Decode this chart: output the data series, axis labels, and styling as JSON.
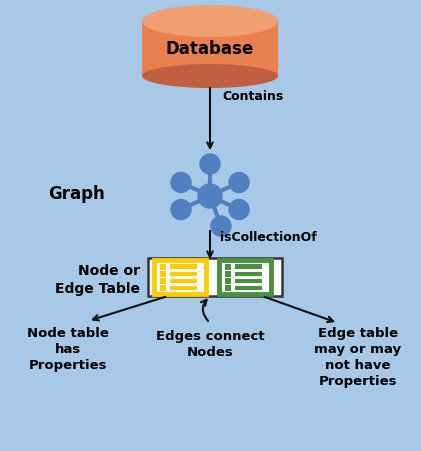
{
  "bg_color": "#a8c8e8",
  "title": "Database",
  "graph_label": "Graph",
  "node_edge_label": "Node or\nEdge Table",
  "contains_label": "Contains",
  "is_collection_label": "isCollectionOf",
  "bottom_left_label": "Node table\nhas\nProperties",
  "bottom_center_label": "Edges connect\nNodes",
  "bottom_right_label": "Edge table\nmay or may\nnot have\nProperties",
  "db_color_top": "#f0a070",
  "db_color_body": "#e88050",
  "db_shadow": "#c06040",
  "graph_node_color": "#5080c0",
  "arrow_color": "#111111",
  "table_border_color": "#333333",
  "yellow_table_color": "#ffcc00",
  "yellow_inner": "#ffffff",
  "green_table_color": "#4a9040",
  "green_inner": "#ffffff",
  "white_fill": "#ffffff"
}
